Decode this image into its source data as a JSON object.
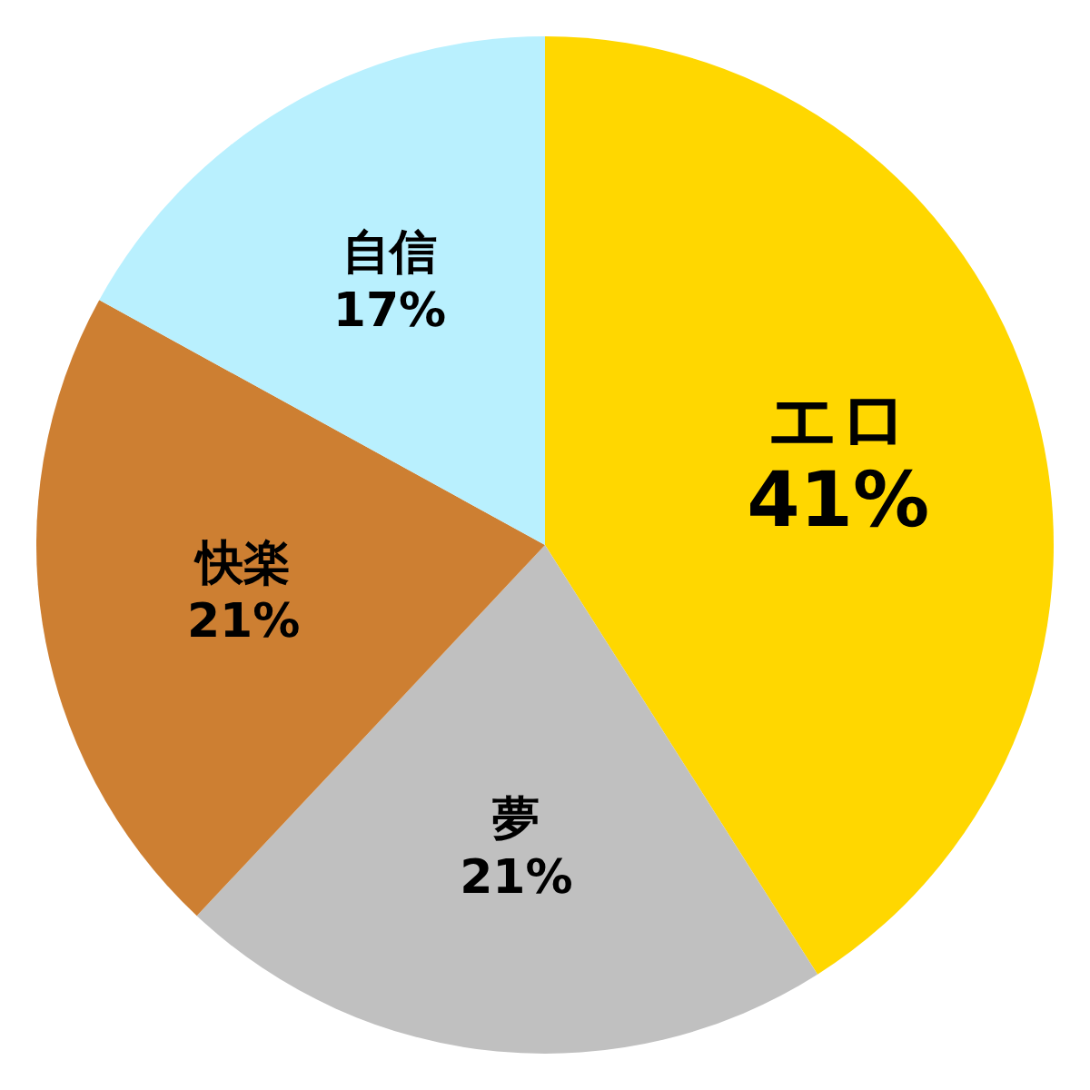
{
  "chart_data": {
    "type": "pie",
    "categories": [
      "エロ",
      "夢",
      "快楽",
      "自信"
    ],
    "values": [
      41,
      21,
      21,
      17
    ],
    "colors": [
      "#ffd700",
      "#c0c0c0",
      "#cd7f32",
      "#b9f0fe"
    ],
    "value_labels": [
      "41%",
      "21%",
      "21%",
      "17%"
    ]
  }
}
